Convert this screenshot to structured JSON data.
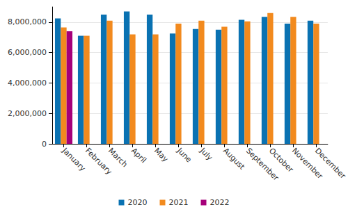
{
  "chart_data": {
    "type": "bar",
    "categories": [
      "January",
      "February",
      "March",
      "April",
      "May",
      "June",
      "July",
      "August",
      "September",
      "October",
      "November",
      "December"
    ],
    "series": [
      {
        "name": "2020",
        "color": "#0a72b2",
        "values": [
          8250000,
          7100000,
          8500000,
          8700000,
          8500000,
          7250000,
          7550000,
          7500000,
          8150000,
          8350000,
          7900000,
          8100000
        ]
      },
      {
        "name": "2021",
        "color": "#f28a1e",
        "values": [
          7650000,
          7100000,
          8100000,
          7200000,
          7200000,
          7900000,
          8100000,
          7700000,
          8050000,
          8600000,
          8350000,
          7900000
        ]
      },
      {
        "name": "2022",
        "color": "#a6007a",
        "values": [
          7400000,
          null,
          null,
          null,
          null,
          null,
          null,
          null,
          null,
          null,
          null,
          null
        ]
      }
    ],
    "ylim": [
      0,
      9000000
    ],
    "yticks": [
      0,
      {
        "value": 2000000,
        "label": "2,000,000"
      },
      {
        "value": 4000000,
        "label": "4,000,000"
      },
      {
        "value": 6000000,
        "label": "6,000,000"
      },
      {
        "value": 8000000,
        "label": "8,000,000"
      }
    ],
    "grid": true,
    "legend": "bottom"
  }
}
